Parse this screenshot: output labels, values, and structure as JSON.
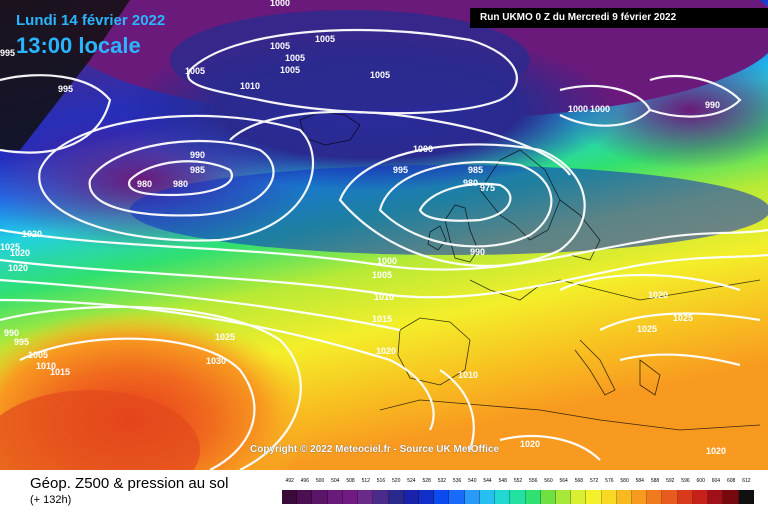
{
  "header": {
    "date": "Lundi 14 février 2022",
    "time": "13:00 locale",
    "run": "Run UKMO 0 Z du Mercredi 9 février 2022"
  },
  "copyright": "Copyright © 2022 Meteociel.fr - Source UK MetOffice",
  "legend": {
    "title": "Géop. Z500 & pression au sol",
    "subtitle": "(+ 132h)",
    "scale_values": [
      "492",
      "496",
      "500",
      "504",
      "508",
      "512",
      "516",
      "520",
      "524",
      "528",
      "532",
      "536",
      "540",
      "544",
      "548",
      "552",
      "556",
      "560",
      "564",
      "568",
      "572",
      "576",
      "580",
      "584",
      "588",
      "592",
      "596",
      "600",
      "604",
      "608",
      "612"
    ],
    "scale_colors": [
      "#3a0a3a",
      "#4b0f52",
      "#5c1468",
      "#6a1a7a",
      "#701a82",
      "#6a2a8a",
      "#4a2a8a",
      "#2a2a8e",
      "#1a22aa",
      "#1030c8",
      "#0a4aee",
      "#1a6af8",
      "#2a9af8",
      "#26c0f0",
      "#20d8d0",
      "#22e0a0",
      "#30e070",
      "#70e040",
      "#a8e83a",
      "#d8ee30",
      "#f4f02a",
      "#f8d822",
      "#f8b820",
      "#f89a20",
      "#f27a1e",
      "#e85a1e",
      "#d83a1c",
      "#c8201a",
      "#a01018",
      "#780810",
      "#101010"
    ]
  },
  "map_labels": [
    {
      "text": "1005"
    },
    {
      "text": "1005"
    },
    {
      "text": "1005"
    },
    {
      "text": "1005"
    },
    {
      "text": "1000"
    },
    {
      "text": "1005"
    },
    {
      "text": "1010"
    },
    {
      "text": "1005"
    },
    {
      "text": "1000"
    },
    {
      "text": "990"
    },
    {
      "text": "995"
    },
    {
      "text": "995"
    },
    {
      "text": "990"
    },
    {
      "text": "985"
    },
    {
      "text": "980"
    },
    {
      "text": "980"
    },
    {
      "text": "1000"
    },
    {
      "text": "995"
    },
    {
      "text": "985"
    },
    {
      "text": "980"
    },
    {
      "text": "975"
    },
    {
      "text": "990"
    },
    {
      "text": "1000"
    },
    {
      "text": "1005"
    },
    {
      "text": "1010"
    },
    {
      "text": "1015"
    },
    {
      "text": "1020"
    },
    {
      "text": "1020"
    },
    {
      "text": "1020"
    },
    {
      "text": "1025"
    },
    {
      "text": "1020"
    },
    {
      "text": "1020"
    },
    {
      "text": "1025"
    },
    {
      "text": "1025"
    },
    {
      "text": "1025"
    },
    {
      "text": "1030"
    },
    {
      "text": "990"
    },
    {
      "text": "995"
    },
    {
      "text": "1005"
    },
    {
      "text": "1010"
    },
    {
      "text": "1015"
    },
    {
      "text": "1010"
    },
    {
      "text": "1020"
    },
    {
      "text": "1020"
    },
    {
      "text": "1000"
    }
  ]
}
